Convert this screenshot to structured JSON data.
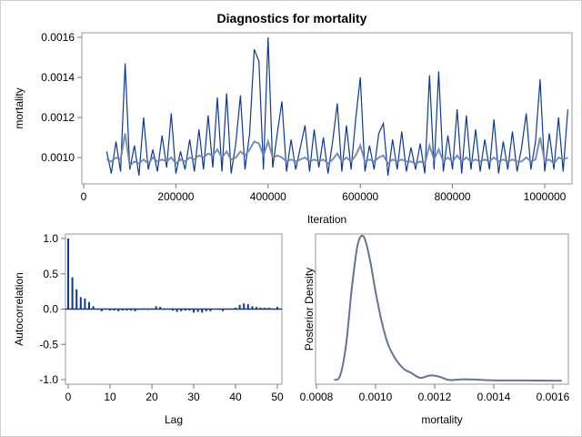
{
  "title": "Diagnostics for mortality",
  "colors": {
    "trace": "#0a3a9a",
    "trace_light": "#5c7fc4",
    "smooth": "#6e82a8",
    "acf_bar": "#0a3a9a",
    "density": "#5f7699",
    "frame": "#9a9a9a"
  },
  "chart_data": [
    {
      "type": "line",
      "name_panel": "trace",
      "xlabel": "Iteration",
      "ylabel": "mortality",
      "xlim": [
        0,
        1050000
      ],
      "ylim": [
        0.00088,
        0.00162
      ],
      "xticks": [
        "0",
        "200000",
        "400000",
        "600000",
        "800000",
        "1000000"
      ],
      "xtick_values": [
        0,
        200000,
        400000,
        600000,
        800000,
        1000000
      ],
      "yticks": [
        "0.0010",
        "0.0012",
        "0.0014",
        "0.0016"
      ],
      "ytick_values": [
        0.001,
        0.0012,
        0.0014,
        0.0016
      ],
      "x_start": 50000,
      "x_step": 10000,
      "values": [
        0.00103,
        0.00092,
        0.00108,
        0.00093,
        0.00147,
        0.00094,
        0.00106,
        0.00091,
        0.0012,
        0.00094,
        0.00104,
        0.00093,
        0.00111,
        0.00095,
        0.00122,
        0.00092,
        0.00103,
        0.00094,
        0.00109,
        0.00093,
        0.00114,
        0.00094,
        0.00121,
        0.00095,
        0.0013,
        0.00093,
        0.00132,
        0.00092,
        0.00107,
        0.00131,
        0.00094,
        0.00112,
        0.00154,
        0.00148,
        0.00094,
        0.0016,
        0.00095,
        0.00112,
        0.00128,
        0.00093,
        0.00109,
        0.00094,
        0.00105,
        0.00116,
        0.00093,
        0.00114,
        0.00095,
        0.0011,
        0.00092,
        0.00108,
        0.00127,
        0.00093,
        0.00116,
        0.00094,
        0.00119,
        0.0014,
        0.00093,
        0.00106,
        0.00094,
        0.00112,
        0.00117,
        0.00091,
        0.00109,
        0.00094,
        0.00113,
        0.00093,
        0.00105,
        0.00094,
        0.00107,
        0.00092,
        0.00141,
        0.00094,
        0.00143,
        0.00093,
        0.00111,
        0.00094,
        0.00124,
        0.00092,
        0.00121,
        0.00094,
        0.00114,
        0.00093,
        0.00109,
        0.00094,
        0.00119,
        0.00092,
        0.00108,
        0.00094,
        0.00113,
        0.00093,
        0.00105,
        0.00122,
        0.00094,
        0.00108,
        0.00139,
        0.00093,
        0.00112,
        0.00094,
        0.0012,
        0.00093,
        0.00124
      ],
      "smooth": [
        0.00099,
        0.00098,
        0.001,
        0.00099,
        0.00112,
        0.00096,
        0.00098,
        0.00097,
        0.00099,
        0.00097,
        0.001,
        0.00098,
        0.00099,
        0.00098,
        0.001,
        0.00097,
        0.00099,
        0.00098,
        0.001,
        0.00099,
        0.00101,
        0.001,
        0.00102,
        0.00101,
        0.00104,
        0.001,
        0.00103,
        0.00099,
        0.001,
        0.00103,
        0.00101,
        0.00104,
        0.00108,
        0.00107,
        0.00101,
        0.00108,
        0.001,
        0.00101,
        0.001,
        0.00098,
        0.00099,
        0.00098,
        0.00099,
        0.001,
        0.00098,
        0.00099,
        0.00098,
        0.00099,
        0.00097,
        0.00099,
        0.00102,
        0.00098,
        0.001,
        0.00098,
        0.00101,
        0.00106,
        0.00098,
        0.00099,
        0.00098,
        0.001,
        0.00101,
        0.00097,
        0.00099,
        0.00098,
        0.00099,
        0.00098,
        0.00098,
        0.00097,
        0.00098,
        0.00097,
        0.00106,
        0.00099,
        0.00104,
        0.00098,
        0.001,
        0.00098,
        0.00101,
        0.00098,
        0.001,
        0.00098,
        0.00099,
        0.00098,
        0.00099,
        0.00098,
        0.001,
        0.00098,
        0.00099,
        0.00098,
        0.00099,
        0.00098,
        0.00098,
        0.001,
        0.00098,
        0.00099,
        0.0011,
        0.00098,
        0.00099,
        0.00097,
        0.001,
        0.00099,
        0.001
      ]
    },
    {
      "type": "bar",
      "name_panel": "autocorrelation",
      "xlabel": "Lag",
      "ylabel": "Autocorrelation",
      "xlim": [
        0,
        50
      ],
      "ylim": [
        -1.0,
        1.0
      ],
      "xticks": [
        "0",
        "10",
        "20",
        "30",
        "40",
        "50"
      ],
      "xtick_values": [
        0,
        10,
        20,
        30,
        40,
        50
      ],
      "yticks": [
        "-1.0",
        "-0.5",
        "0.0",
        "0.5",
        "1.0"
      ],
      "ytick_values": [
        -1.0,
        -0.5,
        0.0,
        0.5,
        1.0
      ],
      "categories": [
        0,
        1,
        2,
        3,
        4,
        5,
        6,
        7,
        8,
        9,
        10,
        11,
        12,
        13,
        14,
        15,
        16,
        17,
        18,
        19,
        20,
        21,
        22,
        23,
        24,
        25,
        26,
        27,
        28,
        29,
        30,
        31,
        32,
        33,
        34,
        35,
        36,
        37,
        38,
        39,
        40,
        41,
        42,
        43,
        44,
        45,
        46,
        47,
        48,
        49,
        50
      ],
      "values": [
        1.0,
        0.45,
        0.28,
        0.17,
        0.15,
        0.1,
        0.04,
        0.0,
        -0.03,
        0.0,
        -0.02,
        -0.02,
        -0.03,
        -0.02,
        -0.02,
        -0.02,
        -0.03,
        -0.01,
        0.01,
        -0.01,
        0.01,
        0.04,
        0.03,
        -0.01,
        0.0,
        -0.02,
        -0.04,
        -0.03,
        -0.02,
        -0.02,
        -0.05,
        -0.04,
        -0.05,
        -0.03,
        -0.03,
        0.0,
        -0.01,
        -0.03,
        0.0,
        0.0,
        0.02,
        0.06,
        0.08,
        0.07,
        0.04,
        0.03,
        0.02,
        0.02,
        0.02,
        0.0,
        0.03
      ]
    },
    {
      "type": "line",
      "name_panel": "density",
      "xlabel": "mortality",
      "ylabel": "Posterior Density",
      "xlim": [
        0.0008,
        0.00163
      ],
      "xticks": [
        "0.0008",
        "0.0010",
        "0.0012",
        "0.0014",
        "0.0016"
      ],
      "xtick_values": [
        0.0008,
        0.001,
        0.0012,
        0.0014,
        0.0016
      ],
      "x": [
        0.00086,
        0.00088,
        0.0009,
        0.00092,
        0.00094,
        0.00096,
        0.00098,
        0.001,
        0.00102,
        0.00104,
        0.00106,
        0.00108,
        0.0011,
        0.00112,
        0.00115,
        0.00118,
        0.0012,
        0.00122,
        0.00125,
        0.0013,
        0.00135,
        0.0014,
        0.0015,
        0.00163
      ],
      "relative_density": [
        0.01,
        0.04,
        0.25,
        0.65,
        0.95,
        1.0,
        0.85,
        0.62,
        0.42,
        0.27,
        0.18,
        0.12,
        0.08,
        0.06,
        0.025,
        0.04,
        0.04,
        0.03,
        0.01,
        0.015,
        0.012,
        0.008,
        0.007,
        0.005
      ]
    }
  ]
}
